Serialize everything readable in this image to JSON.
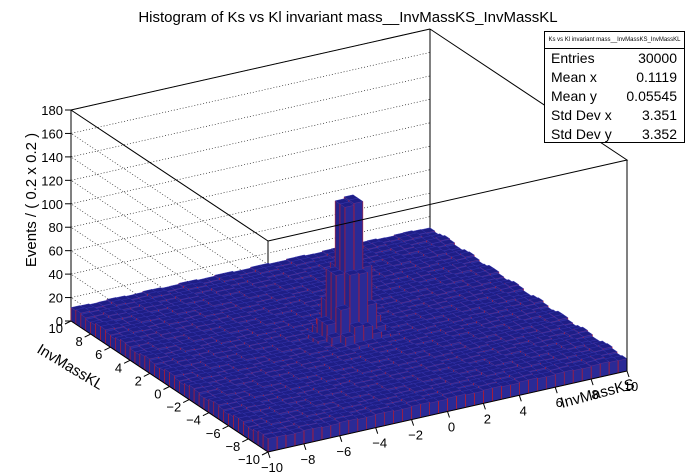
{
  "chart_data": {
    "type": "lego-3d-histogram",
    "title": "Histogram of Ks vs Kl invariant mass__InvMassKS_InvMassKL",
    "xlabel": "InvMassKS",
    "ylabel": "InvMassKL",
    "zlabel": "Events / ( 0.2 x 0.2 )",
    "xlim": [
      -10,
      10
    ],
    "ylim": [
      -10,
      10
    ],
    "zlim": [
      0,
      180
    ],
    "x_ticks": [
      -10,
      -8,
      -6,
      -4,
      -2,
      0,
      2,
      4,
      6,
      8,
      10
    ],
    "y_ticks": [
      -10,
      -8,
      -6,
      -4,
      -2,
      0,
      2,
      4,
      6,
      8,
      10
    ],
    "z_ticks": [
      0,
      20,
      40,
      60,
      80,
      100,
      120,
      140,
      160,
      180
    ],
    "x_tick_labels": [
      "−10",
      "−8",
      "−6",
      "−4",
      "−2",
      "0",
      "2",
      "4",
      "6",
      "8",
      "10"
    ],
    "y_tick_labels": [
      "−10",
      "−8",
      "−6",
      "−4",
      "−2",
      "0",
      "2",
      "4",
      "6",
      "8",
      "10"
    ],
    "z_tick_labels": [
      "0",
      "20",
      "40",
      "60",
      "80",
      "100",
      "120",
      "140",
      "160",
      "180"
    ],
    "bins_x": 100,
    "bins_y": 100,
    "peak": {
      "x": 0,
      "y": 0,
      "height": 145,
      "sigma": 0.6
    },
    "background_level": 11,
    "grid": true,
    "colors": {
      "surface": "#1f1f8f",
      "bars": "#e01010",
      "frame": "#000000"
    }
  },
  "stats": {
    "title": "Ks vs Kl invariant mass__InvMassKS_InvMassKL",
    "rows": [
      {
        "label": "Entries",
        "value": "30000"
      },
      {
        "label": "Mean x",
        "value": "0.1119"
      },
      {
        "label": "Mean y",
        "value": "0.05545"
      },
      {
        "label": "Std Dev x",
        "value": "3.351"
      },
      {
        "label": "Std Dev y",
        "value": "3.352"
      }
    ]
  }
}
